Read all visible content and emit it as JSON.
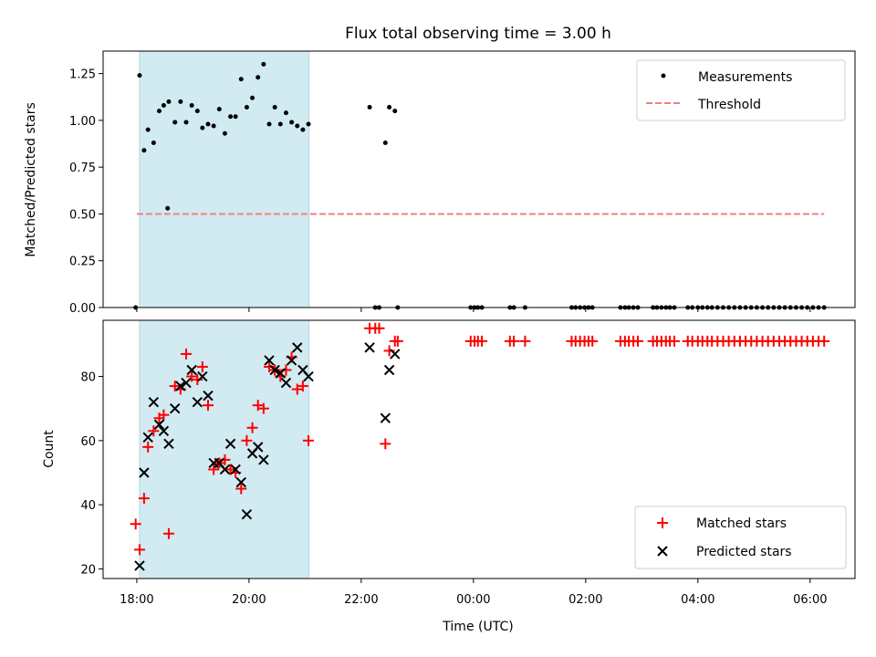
{
  "chart_data": {
    "title": "Flux total observing time = 3.00 h",
    "xlabel": "Time (UTC)",
    "x_unit": "hours since 18:00 UTC",
    "xlim": [
      -0.6,
      12.8
    ],
    "x_ticks": [
      0,
      2,
      4,
      6,
      8,
      10,
      12
    ],
    "x_tick_labels": [
      "18:00",
      "20:00",
      "22:00",
      "00:00",
      "02:00",
      "04:00",
      "06:00"
    ],
    "shaded_interval": [
      0.05,
      3.07
    ],
    "shade_color": "#add8e6",
    "panels": [
      {
        "type": "scatter",
        "ylabel": "Matched/Predicted stars",
        "ylim": [
          0,
          1.37
        ],
        "y_ticks": [
          0.0,
          0.25,
          0.5,
          0.75,
          1.0,
          1.25
        ],
        "y_tick_labels": [
          "0.00",
          "0.25",
          "0.50",
          "0.75",
          "1.00",
          "1.25"
        ],
        "legend_position": "upper right",
        "threshold": {
          "name": "Threshold",
          "value": 0.5,
          "x_range": [
            0.0,
            12.25
          ],
          "color": "#f08080"
        },
        "series": [
          {
            "name": "Measurements",
            "color": "#000000",
            "marker": "dot",
            "x": [
              0.05,
              0.13,
              0.2,
              0.3,
              0.4,
              0.48,
              0.57,
              0.68,
              0.78,
              0.88,
              0.98,
              1.08,
              1.17,
              1.27,
              1.37,
              1.47,
              1.57,
              1.67,
              1.76,
              1.86,
              1.96,
              2.06,
              2.16,
              2.26,
              2.36,
              2.46,
              2.56,
              2.66,
              2.76,
              2.86,
              2.96,
              3.06,
              4.15,
              4.43,
              4.5,
              4.6,
              0.55,
              -0.02,
              4.25,
              4.32,
              4.65,
              5.95,
              6.02,
              6.08,
              6.15,
              6.65,
              6.72,
              6.92,
              7.75,
              7.82,
              7.9,
              7.98,
              8.05,
              8.12,
              8.62,
              8.7,
              8.77,
              8.85,
              8.93,
              9.2,
              9.27,
              9.35,
              9.43,
              9.5,
              9.58,
              9.82,
              9.9,
              10.0,
              10.08,
              10.17,
              10.25,
              10.35,
              10.45,
              10.55,
              10.65,
              10.75,
              10.85,
              10.95,
              11.05,
              11.15,
              11.25,
              11.35,
              11.45,
              11.55,
              11.65,
              11.75,
              11.85,
              11.95,
              12.05,
              12.15,
              12.25
            ],
            "y": [
              1.24,
              0.84,
              0.95,
              0.88,
              1.05,
              1.08,
              1.1,
              0.99,
              1.1,
              0.99,
              1.08,
              1.05,
              0.96,
              0.98,
              0.97,
              1.06,
              0.93,
              1.02,
              1.02,
              1.22,
              1.07,
              1.12,
              1.23,
              1.3,
              0.98,
              1.07,
              0.98,
              1.04,
              0.99,
              0.97,
              0.95,
              0.98,
              1.07,
              0.88,
              1.07,
              1.05,
              0.53,
              0.0,
              0.0,
              0.0,
              0.0,
              0.0,
              0.0,
              0.0,
              0.0,
              0.0,
              0.0,
              0.0,
              0.0,
              0.0,
              0.0,
              0.0,
              0.0,
              0.0,
              0.0,
              0.0,
              0.0,
              0.0,
              0.0,
              0.0,
              0.0,
              0.0,
              0.0,
              0.0,
              0.0,
              0.0,
              0.0,
              0.0,
              0.0,
              0.0,
              0.0,
              0.0,
              0.0,
              0.0,
              0.0,
              0.0,
              0.0,
              0.0,
              0.0,
              0.0,
              0.0,
              0.0,
              0.0,
              0.0,
              0.0,
              0.0,
              0.0,
              0.0,
              0.0,
              0.0,
              0.0
            ]
          }
        ]
      },
      {
        "type": "scatter",
        "ylabel": "Count",
        "ylim": [
          17,
          97.5
        ],
        "y_ticks": [
          20,
          40,
          60,
          80
        ],
        "y_tick_labels": [
          "20",
          "40",
          "60",
          "80"
        ],
        "legend_position": "lower right",
        "series": [
          {
            "name": "Matched stars",
            "color": "#ff0000",
            "marker": "plus",
            "x": [
              -0.02,
              0.05,
              0.13,
              0.2,
              0.3,
              0.4,
              0.48,
              0.57,
              0.68,
              0.78,
              0.88,
              0.98,
              1.08,
              1.17,
              1.27,
              1.37,
              1.47,
              1.57,
              1.67,
              1.76,
              1.86,
              1.96,
              2.06,
              2.16,
              2.26,
              2.36,
              2.46,
              2.56,
              2.66,
              2.76,
              2.86,
              2.96,
              3.06,
              4.15,
              4.25,
              4.32,
              4.43,
              4.5,
              4.6,
              4.65,
              5.95,
              6.02,
              6.08,
              6.15,
              6.65,
              6.72,
              6.92,
              7.75,
              7.82,
              7.9,
              7.98,
              8.05,
              8.12,
              8.62,
              8.7,
              8.77,
              8.85,
              8.93,
              9.2,
              9.27,
              9.35,
              9.43,
              9.5,
              9.58,
              9.82,
              9.9,
              10.0,
              10.08,
              10.17,
              10.25,
              10.35,
              10.45,
              10.55,
              10.65,
              10.75,
              10.85,
              10.95,
              11.05,
              11.15,
              11.25,
              11.35,
              11.45,
              11.55,
              11.65,
              11.75,
              11.85,
              11.95,
              12.05,
              12.15,
              12.25
            ],
            "y": [
              34,
              26,
              42,
              58,
              63,
              67,
              68,
              31,
              77,
              76,
              87,
              80,
              79,
              83,
              71,
              51,
              53,
              54,
              51,
              50,
              45,
              60,
              64,
              71,
              70,
              83,
              82,
              80,
              82,
              86,
              76,
              77,
              60,
              95,
              95,
              95,
              59,
              88,
              91,
              91,
              91,
              91,
              91,
              91,
              91,
              91,
              91,
              91,
              91,
              91,
              91,
              91,
              91,
              91,
              91,
              91,
              91,
              91,
              91,
              91,
              91,
              91,
              91,
              91,
              91,
              91,
              91,
              91,
              91,
              91,
              91,
              91,
              91,
              91,
              91,
              91,
              91,
              91,
              91,
              91,
              91,
              91,
              91,
              91,
              91,
              91,
              91,
              91,
              91,
              91
            ]
          },
          {
            "name": "Predicted stars",
            "color": "#000000",
            "marker": "x",
            "x": [
              0.05,
              0.13,
              0.2,
              0.3,
              0.4,
              0.48,
              0.57,
              0.68,
              0.78,
              0.88,
              0.98,
              1.08,
              1.17,
              1.27,
              1.37,
              1.47,
              1.57,
              1.67,
              1.76,
              1.86,
              1.96,
              2.06,
              2.16,
              2.26,
              2.36,
              2.46,
              2.56,
              2.66,
              2.76,
              2.86,
              2.96,
              3.06,
              4.15,
              4.43,
              4.5,
              4.6
            ],
            "y": [
              21,
              50,
              61,
              72,
              65,
              63,
              59,
              70,
              77,
              78,
              82,
              72,
              80,
              74,
              53,
              53,
              51,
              59,
              51,
              47,
              37,
              56,
              58,
              54,
              85,
              82,
              81,
              78,
              85,
              89,
              82,
              80,
              89,
              67,
              82,
              87
            ]
          }
        ]
      }
    ]
  },
  "colors": {
    "axes": "#000000",
    "legend_border": "#cccccc"
  }
}
